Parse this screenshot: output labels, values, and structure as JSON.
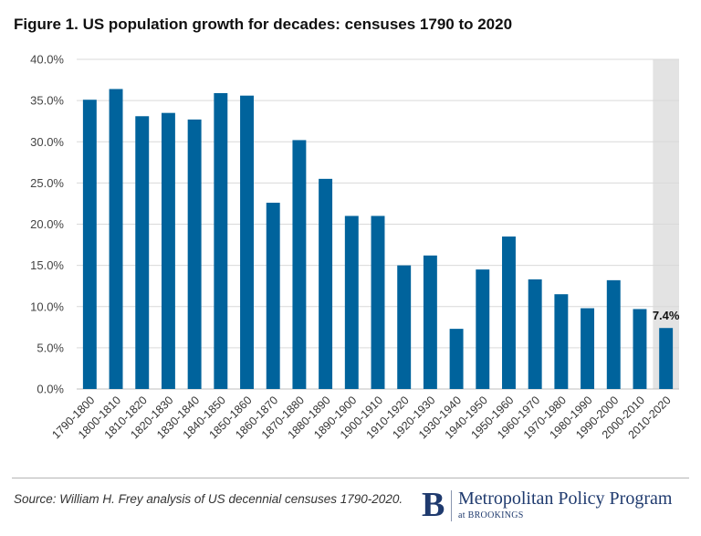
{
  "header": {
    "title": "Figure 1. US population growth for decades: censuses 1790 to 2020"
  },
  "footer": {
    "source": "Source: William H. Frey analysis of US decennial censuses 1790-2020.",
    "brand_mark": "B",
    "brand_name": "Metropolitan Policy Program",
    "brand_sub": "at BROOKINGS"
  },
  "colors": {
    "bar": "#00639c",
    "highlight_band": "#e3e3e3",
    "gridline": "#d9d9d9",
    "brand": "#1f3a6e"
  },
  "chart_data": {
    "type": "bar",
    "title": "Figure 1. US population growth for decades: censuses 1790 to 2020",
    "xlabel": "",
    "ylabel": "",
    "ylim": [
      0,
      40
    ],
    "y_tick_step": 5,
    "y_tick_format": "percent_one_decimal",
    "grid": true,
    "legend": "none",
    "highlight_category": "2010-2020",
    "categories": [
      "1790-1800",
      "1800-1810",
      "1810-1820",
      "1820-1830",
      "1830-1840",
      "1840-1850",
      "1850-1860",
      "1860-1870",
      "1870-1880",
      "1880-1890",
      "1890-1900",
      "1900-1910",
      "1910-1920",
      "1920-1930",
      "1930-1940",
      "1940-1950",
      "1950-1960",
      "1960-1970",
      "1970-1980",
      "1980-1990",
      "1990-2000",
      "2000-2010",
      "2010-2020"
    ],
    "values": [
      35.1,
      36.4,
      33.1,
      33.5,
      32.7,
      35.9,
      35.6,
      22.6,
      30.2,
      25.5,
      21.0,
      21.0,
      15.0,
      16.2,
      7.3,
      14.5,
      18.5,
      13.3,
      11.5,
      9.8,
      13.2,
      9.7,
      7.4
    ],
    "data_labels": [
      {
        "category": "2010-2020",
        "text": "7.4%"
      }
    ]
  }
}
